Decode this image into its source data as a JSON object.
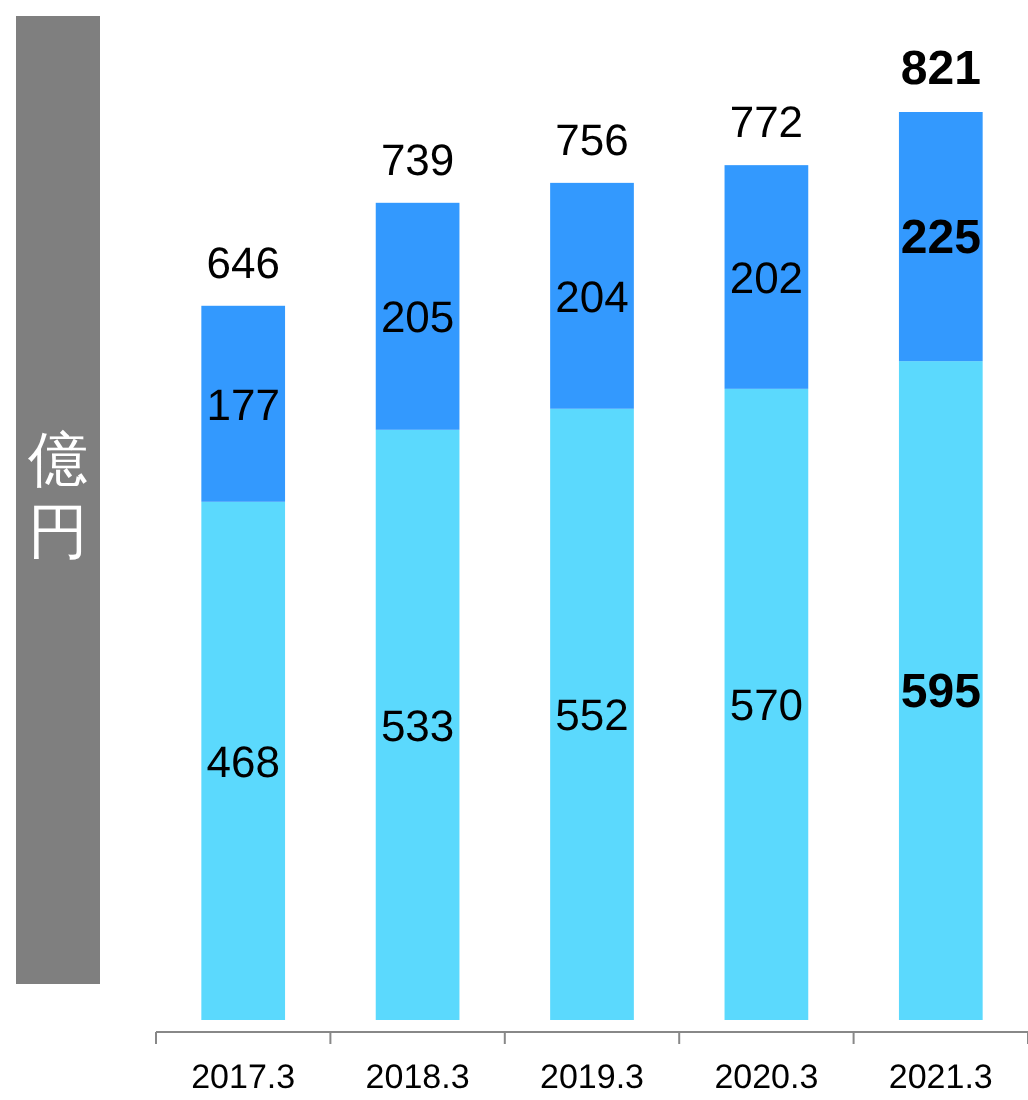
{
  "chart_data": {
    "type": "bar",
    "stacked": true,
    "ylabel": "億円",
    "categories": [
      "2017.3",
      "2018.3",
      "2019.3",
      "2020.3",
      "2021.3"
    ],
    "series": [
      {
        "color": "#5bd9fd",
        "values": [
          468,
          533,
          552,
          570,
          595
        ]
      },
      {
        "color": "#3399fe",
        "values": [
          177,
          205,
          204,
          202,
          225
        ]
      }
    ],
    "data_labels": true,
    "totals": [
      "646",
      "739",
      "756",
      "772",
      "821"
    ]
  }
}
